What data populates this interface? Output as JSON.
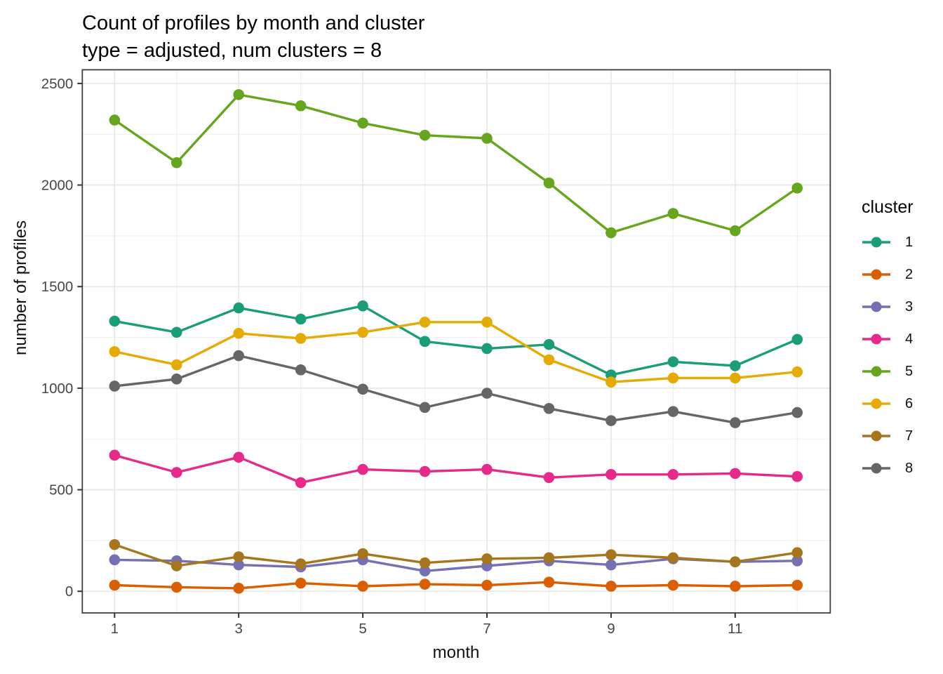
{
  "title": "Count of profiles by month and cluster",
  "subtitle": "type = adjusted, num clusters = 8",
  "x_axis": {
    "label": "month",
    "tick_labels": [
      "1",
      "3",
      "5",
      "7",
      "9",
      "11"
    ],
    "tick_months": [
      1,
      3,
      5,
      7,
      9,
      11
    ]
  },
  "y_axis": {
    "label": "number of profiles",
    "tick_labels": [
      "0",
      "500",
      "1000",
      "1500",
      "2000",
      "2500"
    ],
    "tick_values": [
      0,
      500,
      1000,
      1500,
      2000,
      2500
    ]
  },
  "legend": {
    "title": "cluster",
    "entries": [
      "1",
      "2",
      "3",
      "4",
      "5",
      "6",
      "7",
      "8"
    ]
  },
  "chart_data": {
    "type": "line",
    "title": "Count of profiles by month and cluster",
    "subtitle": "type = adjusted, num clusters = 8",
    "xlabel": "month",
    "ylabel": "number of profiles",
    "x": [
      1,
      2,
      3,
      4,
      5,
      6,
      7,
      8,
      9,
      10,
      11,
      12
    ],
    "xlim": [
      1,
      12
    ],
    "ylim": [
      0,
      2500
    ],
    "x_major_gridlines": [
      1,
      3,
      5,
      7,
      9,
      11
    ],
    "x_minor_gridlines": [
      2,
      4,
      6,
      8,
      10,
      12
    ],
    "y_major_gridlines": [
      0,
      500,
      1000,
      1500,
      2000,
      2500
    ],
    "y_minor_gridlines": [
      250,
      750,
      1250,
      1750,
      2250
    ],
    "grid": true,
    "legend_position": "right",
    "legend_title": "cluster",
    "series": [
      {
        "name": "1",
        "color": "#1b9e77",
        "values": [
          1330,
          1275,
          1395,
          1340,
          1405,
          1230,
          1195,
          1215,
          1065,
          1130,
          1110,
          1240
        ]
      },
      {
        "name": "2",
        "color": "#d95f02",
        "values": [
          30,
          20,
          15,
          40,
          25,
          35,
          30,
          45,
          25,
          30,
          25,
          30
        ]
      },
      {
        "name": "3",
        "color": "#7570b3",
        "values": [
          155,
          150,
          130,
          120,
          155,
          100,
          125,
          150,
          130,
          160,
          145,
          150
        ]
      },
      {
        "name": "4",
        "color": "#e7298a",
        "values": [
          670,
          585,
          660,
          535,
          600,
          590,
          600,
          560,
          575,
          575,
          580,
          565
        ]
      },
      {
        "name": "5",
        "color": "#66a61e",
        "values": [
          2320,
          2110,
          2445,
          2390,
          2305,
          2245,
          2230,
          2010,
          1765,
          1860,
          1775,
          1985
        ]
      },
      {
        "name": "6",
        "color": "#e6ab02",
        "values": [
          1180,
          1115,
          1270,
          1245,
          1275,
          1325,
          1325,
          1140,
          1030,
          1050,
          1050,
          1080
        ]
      },
      {
        "name": "7",
        "color": "#a6761d",
        "values": [
          230,
          125,
          170,
          135,
          185,
          140,
          160,
          165,
          180,
          165,
          145,
          190
        ]
      },
      {
        "name": "8",
        "color": "#666666",
        "values": [
          1010,
          1045,
          1160,
          1090,
          995,
          905,
          975,
          900,
          840,
          885,
          830,
          880
        ]
      }
    ],
    "style": {
      "panel_border_color": "#3f3f3f",
      "major_grid_color": "#e5e5e5",
      "minor_grid_color": "#f0f0f0",
      "tick_mark_color": "#333333",
      "tick_label_color": "#474747",
      "background": "#ffffff"
    }
  }
}
